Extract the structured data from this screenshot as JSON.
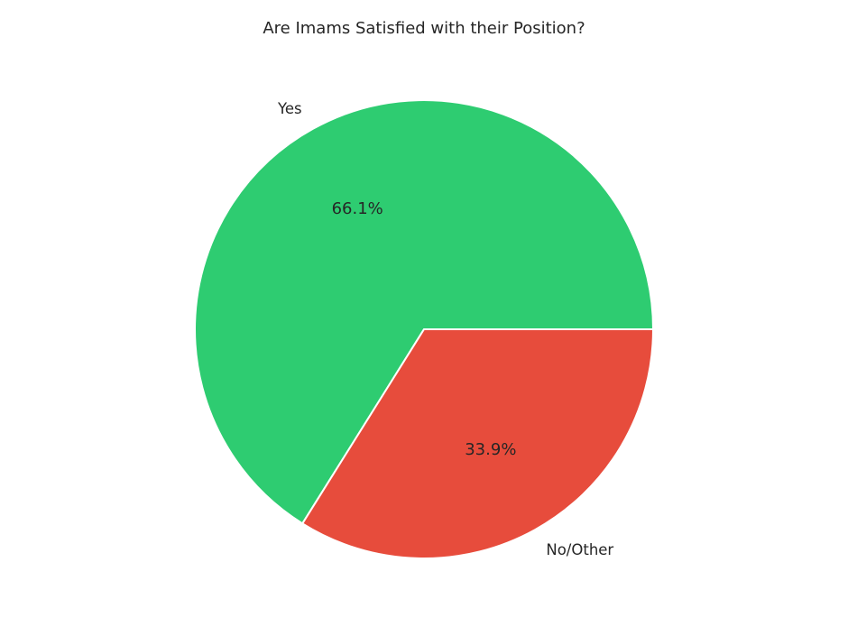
{
  "chart_data": {
    "type": "pie",
    "title": "Are Imams Satisfied with their Position?",
    "categories": [
      "Yes",
      "No/Other"
    ],
    "values": [
      66.1,
      33.9
    ],
    "percent_labels": [
      "66.1%",
      "33.9%"
    ],
    "colors": [
      "#2ecc71",
      "#e74c3c"
    ],
    "start_angle_deg": 0,
    "direction": "counterclockwise",
    "legend": "none"
  }
}
